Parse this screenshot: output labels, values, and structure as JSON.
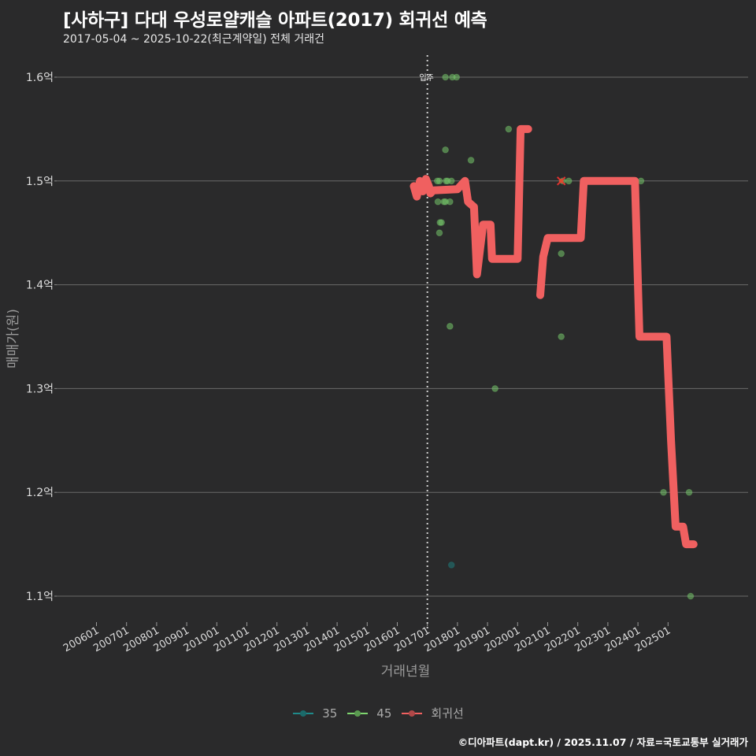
{
  "header": {
    "title": "[사하구] 다대 우성로얄캐슬 아파트(2017) 회귀선 예측",
    "subtitle": "2017-05-04 ~ 2025-10-22(최근계약일) 전체 거래건"
  },
  "footer": {
    "credit": "©디아파트(dapt.kr) / 2025.11.07 / 자료=국토교통부 실거래가"
  },
  "legend": {
    "items": [
      {
        "label": "35",
        "color": "#1f8a8a"
      },
      {
        "label": "45",
        "color": "#7ed56f"
      },
      {
        "label": "회귀선",
        "color": "#f06060"
      }
    ]
  },
  "annotation": {
    "label": "입주",
    "x": "201701"
  },
  "chart_data": {
    "type": "scatter",
    "title": "[사하구] 다대 우성로얄캐슬 아파트(2017) 회귀선 예측",
    "subtitle": "2017-05-04 ~ 2025-10-22(최근계약일) 전체 거래건",
    "xlabel": "거래년월",
    "ylabel": "매매가(원)",
    "x_ticks": [
      "200601",
      "200701",
      "200801",
      "200901",
      "201001",
      "201101",
      "201201",
      "201301",
      "201401",
      "201501",
      "201601",
      "201701",
      "201801",
      "201901",
      "202001",
      "202101",
      "202201",
      "202301",
      "202401",
      "202501"
    ],
    "y_ticks": [
      "1.1억",
      "1.2억",
      "1.3억",
      "1.4억",
      "1.5억",
      "1.6억"
    ],
    "ylim": [
      1.08,
      1.62
    ],
    "y_unit": "억",
    "grid": true,
    "legend_position": "bottom",
    "vline": {
      "x": 2017.0,
      "label": "입주",
      "style": "dotted"
    },
    "series": [
      {
        "name": "35",
        "color": "#1f8a8a",
        "points": [
          {
            "x": 2017.8,
            "y": 1.13
          }
        ]
      },
      {
        "name": "45",
        "color": "#7ed56f",
        "points": [
          {
            "x": 2017.6,
            "y": 1.6
          },
          {
            "x": 2017.83,
            "y": 1.6
          },
          {
            "x": 2017.97,
            "y": 1.6
          },
          {
            "x": 2017.33,
            "y": 1.5
          },
          {
            "x": 2017.4,
            "y": 1.5
          },
          {
            "x": 2017.62,
            "y": 1.5
          },
          {
            "x": 2017.67,
            "y": 1.5
          },
          {
            "x": 2017.8,
            "y": 1.5
          },
          {
            "x": 2017.35,
            "y": 1.48
          },
          {
            "x": 2017.55,
            "y": 1.48
          },
          {
            "x": 2017.6,
            "y": 1.48
          },
          {
            "x": 2017.75,
            "y": 1.48
          },
          {
            "x": 2017.42,
            "y": 1.46
          },
          {
            "x": 2017.47,
            "y": 1.46
          },
          {
            "x": 2017.4,
            "y": 1.45
          },
          {
            "x": 2017.6,
            "y": 1.53
          },
          {
            "x": 2018.45,
            "y": 1.52
          },
          {
            "x": 2019.7,
            "y": 1.55
          },
          {
            "x": 2017.75,
            "y": 1.36
          },
          {
            "x": 2019.25,
            "y": 1.3
          },
          {
            "x": 2021.5,
            "y": 1.5
          },
          {
            "x": 2021.7,
            "y": 1.5
          },
          {
            "x": 2021.45,
            "y": 1.43
          },
          {
            "x": 2021.45,
            "y": 1.35
          },
          {
            "x": 2024.1,
            "y": 1.5
          },
          {
            "x": 2024.85,
            "y": 1.2
          },
          {
            "x": 2025.7,
            "y": 1.2
          },
          {
            "x": 2025.75,
            "y": 1.1
          }
        ]
      },
      {
        "name": "회귀선",
        "color": "#f06060",
        "type": "line",
        "points": [
          {
            "x": 2016.55,
            "y": 1.495
          },
          {
            "x": 2016.65,
            "y": 1.485
          },
          {
            "x": 2016.75,
            "y": 1.5
          },
          {
            "x": 2016.85,
            "y": 1.49
          },
          {
            "x": 2016.95,
            "y": 1.502
          },
          {
            "x": 2017.05,
            "y": 1.495
          },
          {
            "x": 2017.1,
            "y": 1.488
          },
          {
            "x": 2017.2,
            "y": 1.491
          },
          {
            "x": 2018.0,
            "y": 1.492
          },
          {
            "x": 2018.25,
            "y": 1.5
          },
          {
            "x": 2018.35,
            "y": 1.48
          },
          {
            "x": 2018.55,
            "y": 1.475
          },
          {
            "x": 2018.65,
            "y": 1.41
          },
          {
            "x": 2018.85,
            "y": 1.458
          },
          {
            "x": 2019.1,
            "y": 1.458
          },
          {
            "x": 2019.15,
            "y": 1.425
          },
          {
            "x": 2020.0,
            "y": 1.425
          },
          {
            "x": 2020.1,
            "y": 1.55
          },
          {
            "x": 2020.35,
            "y": 1.55
          },
          {
            "x": 2020.75,
            "y": 1.39
          },
          {
            "x": 2020.85,
            "y": 1.427
          },
          {
            "x": 2021.0,
            "y": 1.445
          },
          {
            "x": 2022.1,
            "y": 1.445
          },
          {
            "x": 2022.2,
            "y": 1.5
          },
          {
            "x": 2022.4,
            "y": 1.5
          },
          {
            "x": 2023.5,
            "y": 1.5
          },
          {
            "x": 2023.9,
            "y": 1.5
          },
          {
            "x": 2024.05,
            "y": 1.35
          },
          {
            "x": 2024.95,
            "y": 1.35
          },
          {
            "x": 2025.1,
            "y": 1.25
          },
          {
            "x": 2025.25,
            "y": 1.167
          },
          {
            "x": 2025.5,
            "y": 1.167
          },
          {
            "x": 2025.6,
            "y": 1.15
          },
          {
            "x": 2025.85,
            "y": 1.15
          }
        ]
      }
    ],
    "highlight_marker": {
      "x": 2021.45,
      "y": 1.5,
      "shape": "x",
      "color": "#e03030"
    }
  }
}
